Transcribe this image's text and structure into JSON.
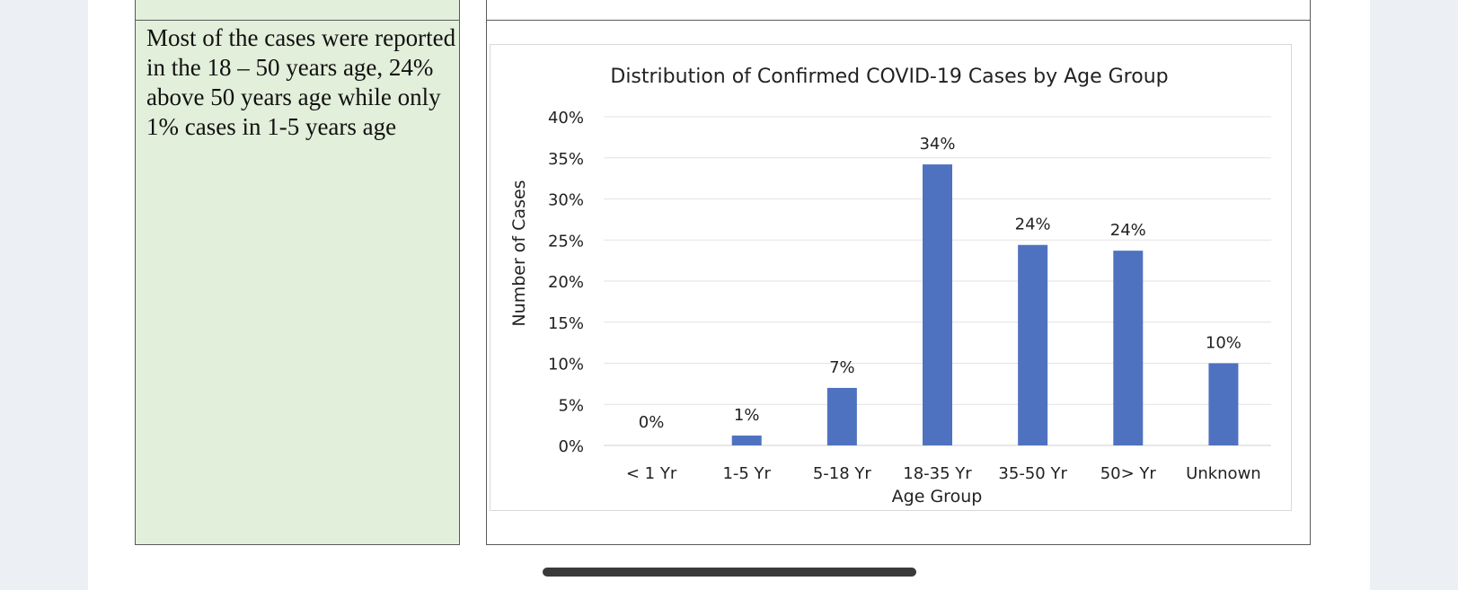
{
  "summary_text": "Most of the cases were reported in the 18 – 50 years age, 24% above 50 years age while only 1% cases in 1-5 years age",
  "chart_data": {
    "type": "bar",
    "title": "Distribution of Confirmed COVID-19 Cases by Age Group",
    "xlabel": "Age Group",
    "ylabel": "Number of Cases",
    "categories": [
      "< 1 Yr",
      "1-5 Yr",
      "5-18 Yr",
      "18-35 Yr",
      "35-50 Yr",
      "50> Yr",
      "Unknown"
    ],
    "values": [
      0,
      1,
      7,
      34,
      24,
      24,
      10
    ],
    "exact_values": [
      0,
      1.2,
      7.0,
      34.2,
      24.4,
      23.7,
      10.0
    ],
    "data_labels": [
      "0%",
      "1%",
      "7%",
      "34%",
      "24%",
      "24%",
      "10%"
    ],
    "y_ticks": [
      "0%",
      "5%",
      "10%",
      "15%",
      "20%",
      "25%",
      "30%",
      "35%",
      "40%"
    ],
    "ylim": [
      0,
      40
    ],
    "grid": true,
    "bar_color": "#4f72c0"
  }
}
